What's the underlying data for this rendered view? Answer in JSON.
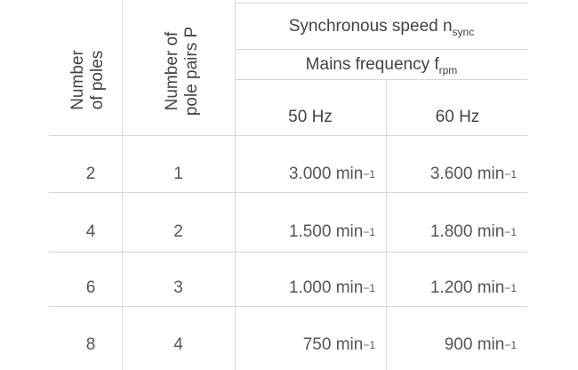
{
  "header": {
    "col1_line1": "Number",
    "col1_line2": "of poles",
    "col2_line1": "Number of",
    "col2_line2": "pole pairs P",
    "sync_speed_label": "Synchronous speed n",
    "sync_speed_sub": "sync",
    "mains_freq_label": "Mains frequency f",
    "mains_freq_sub": "rpm",
    "freq_50": "50 Hz",
    "freq_60": "60 Hz"
  },
  "unit": "min",
  "unit_exp": "−1",
  "rows": [
    {
      "poles": "2",
      "pairs": "1",
      "v50": "3.000",
      "v60": "3.600"
    },
    {
      "poles": "4",
      "pairs": "2",
      "v50": "1.500",
      "v60": "1.800"
    },
    {
      "poles": "6",
      "pairs": "3",
      "v50": "1.000",
      "v60": "1.200"
    },
    {
      "poles": "8",
      "pairs": "4",
      "v50": "750",
      "v60": "900"
    }
  ]
}
